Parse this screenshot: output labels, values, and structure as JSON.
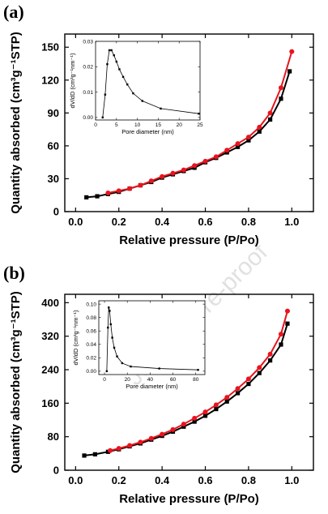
{
  "watermark": "Journal Pre-proof",
  "chart_data": [
    {
      "type": "line",
      "panel_label": "(a)",
      "xlabel": "Relative pressure (P/Po)",
      "ylabel": "Quantity absorbed (cm³g⁻¹STP)",
      "xlim": [
        -0.05,
        1.1
      ],
      "ylim": [
        0,
        162
      ],
      "x_ticks": [
        0.0,
        0.2,
        0.4,
        0.6,
        0.8,
        1.0
      ],
      "x_tick_labels": [
        "0.0",
        "0.2",
        "0.4",
        "0.6",
        "0.8",
        "1.0"
      ],
      "y_ticks": [
        0,
        30,
        60,
        90,
        120,
        150
      ],
      "y_tick_labels": [
        "0",
        "30",
        "60",
        "90",
        "120",
        "150"
      ],
      "series": [
        {
          "color": "#000000",
          "marker": "square",
          "x": [
            0.05,
            0.1,
            0.15,
            0.2,
            0.25,
            0.3,
            0.35,
            0.4,
            0.45,
            0.5,
            0.55,
            0.6,
            0.65,
            0.7,
            0.75,
            0.8,
            0.85,
            0.9,
            0.95,
            0.99
          ],
          "y": [
            13,
            14,
            16,
            18,
            21,
            24,
            27,
            31,
            34,
            37,
            40,
            45,
            49,
            54,
            59,
            65,
            73,
            84,
            103,
            128
          ]
        },
        {
          "color": "#e8141e",
          "marker": "circle",
          "x": [
            0.15,
            0.2,
            0.25,
            0.3,
            0.35,
            0.4,
            0.45,
            0.5,
            0.55,
            0.6,
            0.65,
            0.7,
            0.75,
            0.8,
            0.85,
            0.9,
            0.95,
            1.0
          ],
          "y": [
            17,
            19,
            21,
            24,
            28,
            32,
            35,
            38,
            42,
            46,
            50,
            56,
            62,
            68,
            77,
            90,
            113,
            146
          ]
        }
      ],
      "inset": {
        "xlabel": "Pore diameter (nm)",
        "ylabel": "dV/dD (cm³g⁻¹nm⁻¹)",
        "xlim": [
          0,
          25
        ],
        "ylim": [
          -0.001,
          0.03
        ],
        "x_ticks": [
          0,
          5,
          10,
          15,
          20,
          25
        ],
        "x_tick_labels": [
          "0",
          "5",
          "10",
          "15",
          "20",
          "25"
        ],
        "y_ticks": [
          0.0,
          0.01,
          0.02,
          0.03
        ],
        "y_tick_labels": [
          "0.00",
          "0.01",
          "0.02",
          "0.03"
        ],
        "x": [
          1.7,
          2.3,
          2.8,
          3.3,
          3.8,
          4.4,
          5.0,
          5.7,
          6.6,
          7.6,
          9.0,
          11.2,
          15.6,
          24.7
        ],
        "y": [
          0.0,
          0.009,
          0.021,
          0.0265,
          0.0265,
          0.0245,
          0.022,
          0.019,
          0.016,
          0.013,
          0.0095,
          0.0065,
          0.0035,
          0.0015
        ]
      }
    },
    {
      "type": "line",
      "panel_label": "(b)",
      "xlabel": "Relative pressure (P/Po)",
      "ylabel": "Quantity absorbed (cm³g⁻¹STP)",
      "xlim": [
        -0.05,
        1.1
      ],
      "ylim": [
        0,
        420
      ],
      "x_ticks": [
        0.0,
        0.2,
        0.4,
        0.6,
        0.8,
        1.0
      ],
      "x_tick_labels": [
        "0.0",
        "0.2",
        "0.4",
        "0.6",
        "0.8",
        "1.0"
      ],
      "y_ticks": [
        0,
        80,
        160,
        240,
        320,
        400
      ],
      "y_tick_labels": [
        "0",
        "80",
        "160",
        "240",
        "320",
        "400"
      ],
      "series": [
        {
          "color": "#000000",
          "marker": "square",
          "x": [
            0.04,
            0.09,
            0.15,
            0.2,
            0.25,
            0.3,
            0.35,
            0.4,
            0.45,
            0.5,
            0.55,
            0.6,
            0.65,
            0.7,
            0.75,
            0.8,
            0.85,
            0.9,
            0.95,
            0.98
          ],
          "y": [
            35,
            38,
            44,
            50,
            57,
            64,
            73,
            82,
            92,
            104,
            116,
            130,
            146,
            164,
            184,
            206,
            232,
            262,
            300,
            350
          ]
        },
        {
          "color": "#e8141e",
          "marker": "circle",
          "x": [
            0.16,
            0.2,
            0.25,
            0.3,
            0.35,
            0.4,
            0.45,
            0.5,
            0.55,
            0.6,
            0.65,
            0.7,
            0.75,
            0.8,
            0.85,
            0.9,
            0.95,
            0.98
          ],
          "y": [
            47,
            52,
            59,
            67,
            76,
            86,
            97,
            110,
            124,
            139,
            156,
            174,
            195,
            218,
            245,
            277,
            325,
            380
          ]
        }
      ],
      "inset": {
        "xlabel": "Pore diameter (nm)",
        "ylabel": "dV/dD (cm³g⁻¹nm⁻¹)",
        "xlim": [
          -5,
          88
        ],
        "ylim": [
          -0.005,
          0.105
        ],
        "x_ticks": [
          0,
          20,
          40,
          60,
          80
        ],
        "x_tick_labels": [
          "0",
          "20",
          "40",
          "60",
          "80"
        ],
        "y_ticks": [
          0.0,
          0.02,
          0.04,
          0.06,
          0.08,
          0.1
        ],
        "y_tick_labels": [
          "0.00",
          "0.02",
          "0.04",
          "0.06",
          "0.08",
          "0.10"
        ],
        "x": [
          2.0,
          3.0,
          3.7,
          4.5,
          5.5,
          6.8,
          8.5,
          11.0,
          15.5,
          23.0,
          48.0,
          82.0
        ],
        "y": [
          0.0,
          0.065,
          0.095,
          0.09,
          0.07,
          0.05,
          0.035,
          0.022,
          0.012,
          0.007,
          0.004,
          0.002
        ]
      }
    }
  ]
}
